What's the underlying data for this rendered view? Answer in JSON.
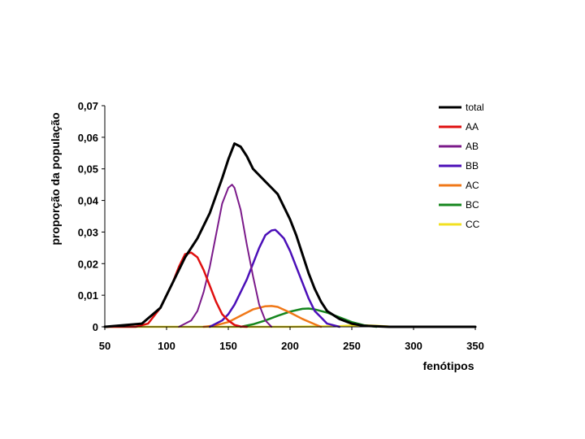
{
  "chart_data": {
    "type": "line",
    "xlabel": "fenótipos",
    "ylabel": "proporção da população",
    "xlim": [
      50,
      350
    ],
    "ylim": [
      0,
      0.07
    ],
    "x_ticks": [
      {
        "value": 50,
        "label": "50"
      },
      {
        "value": 100,
        "label": "100"
      },
      {
        "value": 150,
        "label": "150"
      },
      {
        "value": 200,
        "label": "200"
      },
      {
        "value": 250,
        "label": "250"
      },
      {
        "value": 300,
        "label": "300"
      },
      {
        "value": 350,
        "label": "350"
      }
    ],
    "y_ticks": [
      {
        "value": 0,
        "label": "0"
      },
      {
        "value": 0.01,
        "label": "0,01"
      },
      {
        "value": 0.02,
        "label": "0,02"
      },
      {
        "value": 0.03,
        "label": "0,03"
      },
      {
        "value": 0.04,
        "label": "0,04"
      },
      {
        "value": 0.05,
        "label": "0,05"
      },
      {
        "value": 0.06,
        "label": "0,06"
      },
      {
        "value": 0.07,
        "label": "0,07"
      }
    ],
    "grid": false,
    "legend_position": "top-right",
    "series": [
      {
        "name": "total",
        "color": "#000000",
        "x": [
          50,
          80,
          95,
          105,
          115,
          125,
          135,
          145,
          150,
          155,
          160,
          165,
          170,
          175,
          180,
          185,
          190,
          195,
          200,
          205,
          210,
          215,
          220,
          225,
          230,
          240,
          250,
          260,
          280,
          300,
          350
        ],
        "y": [
          0,
          0.001,
          0.006,
          0.014,
          0.022,
          0.028,
          0.036,
          0.047,
          0.053,
          0.058,
          0.057,
          0.054,
          0.05,
          0.048,
          0.046,
          0.044,
          0.042,
          0.038,
          0.034,
          0.029,
          0.023,
          0.017,
          0.012,
          0.008,
          0.005,
          0.0025,
          0.001,
          0.0003,
          0,
          0,
          0
        ]
      },
      {
        "name": "AA",
        "color": "#e01010",
        "x": [
          50,
          75,
          85,
          95,
          105,
          110,
          115,
          120,
          125,
          130,
          135,
          140,
          145,
          150,
          155,
          160,
          165
        ],
        "y": [
          0,
          0,
          0.001,
          0.006,
          0.014,
          0.019,
          0.023,
          0.0235,
          0.022,
          0.018,
          0.013,
          0.008,
          0.004,
          0.002,
          0.0006,
          0.0001,
          0
        ]
      },
      {
        "name": "AB",
        "color": "#7b1a8a",
        "x": [
          110,
          115,
          120,
          125,
          130,
          135,
          140,
          145,
          150,
          153,
          155,
          160,
          165,
          170,
          175,
          180,
          185
        ],
        "y": [
          0,
          0.001,
          0.002,
          0.005,
          0.011,
          0.019,
          0.029,
          0.039,
          0.044,
          0.045,
          0.044,
          0.037,
          0.026,
          0.016,
          0.007,
          0.002,
          0
        ]
      },
      {
        "name": "BB",
        "color": "#4b0fb8",
        "x": [
          135,
          145,
          150,
          155,
          160,
          165,
          170,
          175,
          180,
          185,
          188,
          190,
          195,
          200,
          205,
          210,
          215,
          220,
          225,
          230,
          240
        ],
        "y": [
          0,
          0.002,
          0.004,
          0.007,
          0.011,
          0.015,
          0.02,
          0.025,
          0.029,
          0.0305,
          0.0307,
          0.03,
          0.028,
          0.024,
          0.019,
          0.014,
          0.009,
          0.005,
          0.003,
          0.001,
          0
        ]
      },
      {
        "name": "AC",
        "color": "#f07818",
        "x": [
          130,
          140,
          150,
          160,
          170,
          180,
          185,
          190,
          200,
          210,
          220,
          225
        ],
        "y": [
          0,
          0.0005,
          0.0015,
          0.0035,
          0.0055,
          0.0065,
          0.0066,
          0.0063,
          0.0045,
          0.0025,
          0.0008,
          0
        ]
      },
      {
        "name": "BC",
        "color": "#15861e",
        "x": [
          160,
          170,
          180,
          190,
          200,
          210,
          215,
          220,
          230,
          240,
          250,
          260,
          270
        ],
        "y": [
          0,
          0.0008,
          0.002,
          0.0035,
          0.0048,
          0.0057,
          0.0058,
          0.0055,
          0.0045,
          0.003,
          0.0015,
          0.0005,
          0
        ]
      },
      {
        "name": "CC",
        "color": "#f2e020",
        "x": [
          50,
          200,
          240,
          250,
          260,
          270,
          280,
          350
        ],
        "y": [
          0,
          0,
          0.0002,
          0.0004,
          0.0005,
          0.0003,
          0.0001,
          0
        ]
      }
    ]
  }
}
